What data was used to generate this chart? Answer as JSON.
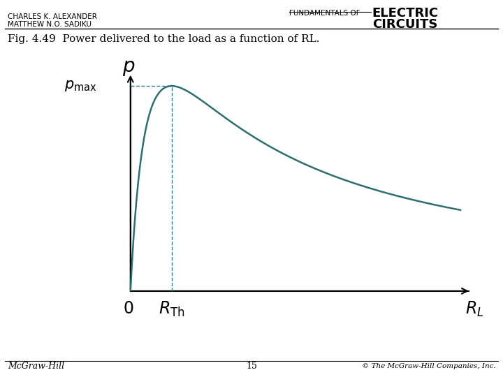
{
  "title_fig": "Fig. 4.49  Power delivered to the load as a function of RL.",
  "header_left_line1": "CHARLES K. ALEXANDER",
  "header_left_line2": "MATTHEW N.O. SADIKU",
  "header_center": "FUNDAMENTALS OF",
  "header_right_line1": "ELECTRIC",
  "header_right_line2": "CIRCUITS",
  "footer_left": "McGraw-Hill",
  "footer_center": "15",
  "footer_right": "© The McGraw-Hill Companies, Inc.",
  "curve_color": "#2d6e6e",
  "dashed_color": "#2d8080",
  "background_color": "#ffffff"
}
